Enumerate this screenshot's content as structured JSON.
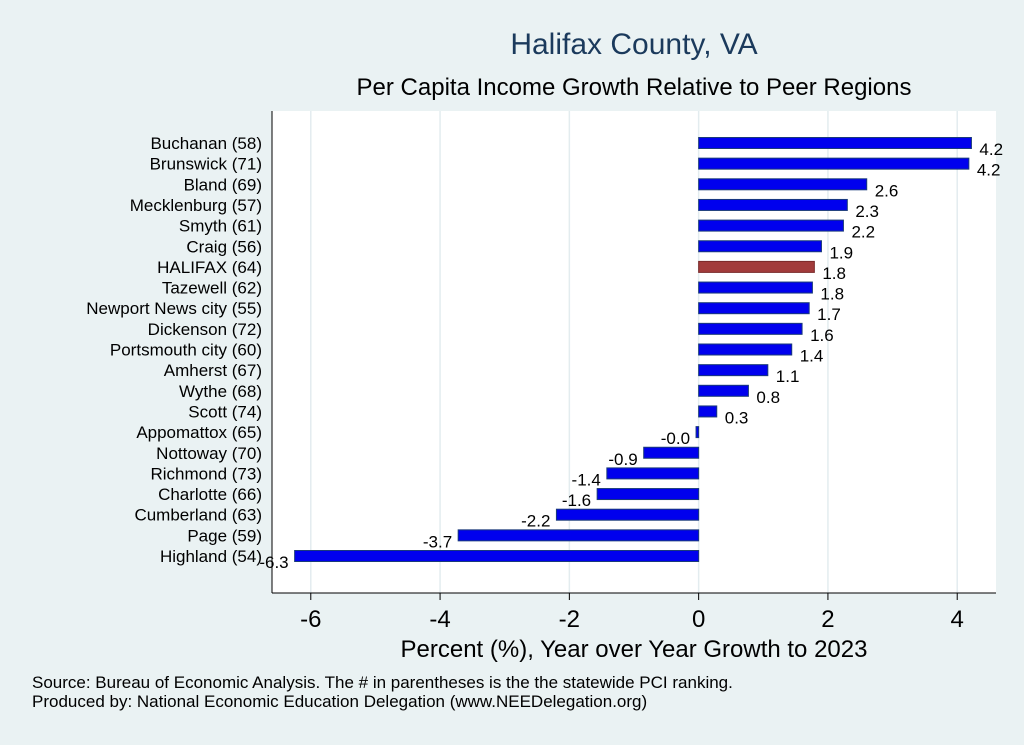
{
  "header": {
    "title": "Halifax County, VA",
    "subtitle": "Per Capita Income Growth Relative to Peer Regions"
  },
  "footer": {
    "source": "Source: Bureau of Economic Analysis. The # in parentheses is the the statewide PCI ranking.",
    "produced_by": "Produced by: National Economic Education Delegation (www.NEEDelegation.org)"
  },
  "colors": {
    "background": "#eaf2f3",
    "plot_background": "#ffffff",
    "bar": "#0000ee",
    "highlight_bar": "#a23b3b",
    "title": "#1b3a5c"
  },
  "chart_data": {
    "type": "bar",
    "orientation": "horizontal",
    "title": "Halifax County, VA",
    "subtitle": "Per Capita Income Growth Relative to Peer Regions",
    "xlabel": "Percent (%), Year over Year Growth to 2023",
    "ylabel": "",
    "xlim": [
      -6.6,
      4.6
    ],
    "xticks": [
      -6,
      -4,
      -2,
      0,
      2,
      4
    ],
    "grid": true,
    "legend": "none",
    "categories": [
      "Buchanan (58)",
      "Brunswick (71)",
      "Bland (69)",
      "Mecklenburg (57)",
      "Smyth (61)",
      "Craig (56)",
      "HALIFAX (64)",
      "Tazewell (62)",
      "Newport News city (55)",
      "Dickenson (72)",
      "Portsmouth city (60)",
      "Amherst (67)",
      "Wythe (68)",
      "Scott (74)",
      "Appomattox (65)",
      "Nottoway (70)",
      "Richmond (73)",
      "Charlotte (66)",
      "Cumberland (63)",
      "Page (59)",
      "Highland (54)"
    ],
    "values": [
      4.22,
      4.18,
      2.6,
      2.3,
      2.24,
      1.9,
      1.79,
      1.76,
      1.71,
      1.6,
      1.44,
      1.07,
      0.77,
      0.28,
      -0.04,
      -0.85,
      -1.42,
      -1.57,
      -2.2,
      -3.72,
      -6.25
    ],
    "value_labels": [
      "4.2",
      "4.2",
      "2.6",
      "2.3",
      "2.2",
      "1.9",
      "1.8",
      "1.8",
      "1.7",
      "1.6",
      "1.4",
      "1.1",
      "0.8",
      "0.3",
      "-0.0",
      "-0.9",
      "-1.4",
      "-1.6",
      "-2.2",
      "-3.7",
      "-6.3"
    ],
    "highlight": "HALIFAX (64)"
  }
}
